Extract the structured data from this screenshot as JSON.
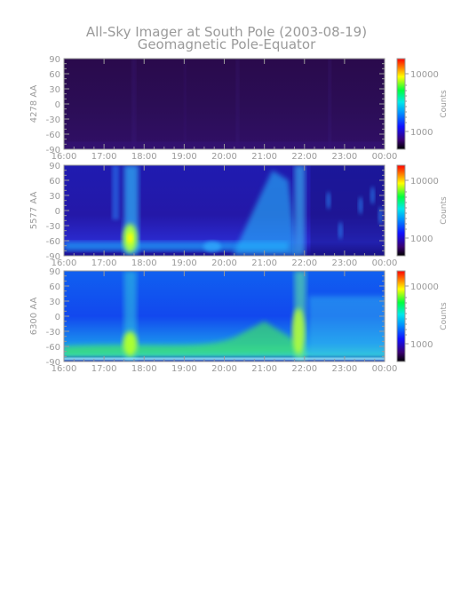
{
  "title": "All-Sky Imager at South Pole (2003-08-19)",
  "subtitle": "Geomagnetic Pole-Equator",
  "chart_data": [
    {
      "type": "heatmap",
      "ylabel": "4278 AA",
      "x_ticks": [
        "16:00",
        "17:00",
        "18:00",
        "19:00",
        "20:00",
        "21:00",
        "22:00",
        "23:00",
        "00:00"
      ],
      "y_ticks": [
        90,
        60,
        30,
        0,
        -30,
        -60,
        -90
      ],
      "ylim": [
        -90,
        90
      ],
      "colorbar": {
        "label": "Counts",
        "ticks": [
          "10000",
          "1000"
        ],
        "scale": "log"
      },
      "level": 0
    },
    {
      "type": "heatmap",
      "ylabel": "5577 AA",
      "x_ticks": [
        "16:00",
        "17:00",
        "18:00",
        "19:00",
        "20:00",
        "21:00",
        "22:00",
        "23:00",
        "00:00"
      ],
      "y_ticks": [
        90,
        60,
        30,
        0,
        -30,
        -60,
        -90
      ],
      "ylim": [
        -90,
        90
      ],
      "colorbar": {
        "label": "Counts",
        "ticks": [
          "10000",
          "1000"
        ],
        "scale": "log"
      },
      "level": 1
    },
    {
      "type": "heatmap",
      "ylabel": "6300 AA",
      "x_ticks": [
        "16:00",
        "17:00",
        "18:00",
        "19:00",
        "20:00",
        "21:00",
        "22:00",
        "23:00",
        "00:00"
      ],
      "y_ticks": [
        90,
        60,
        30,
        0,
        -30,
        -60,
        -90
      ],
      "ylim": [
        -90,
        90
      ],
      "colorbar": {
        "label": "Counts",
        "ticks": [
          "10000",
          "1000"
        ],
        "scale": "log"
      },
      "level": 2
    }
  ]
}
